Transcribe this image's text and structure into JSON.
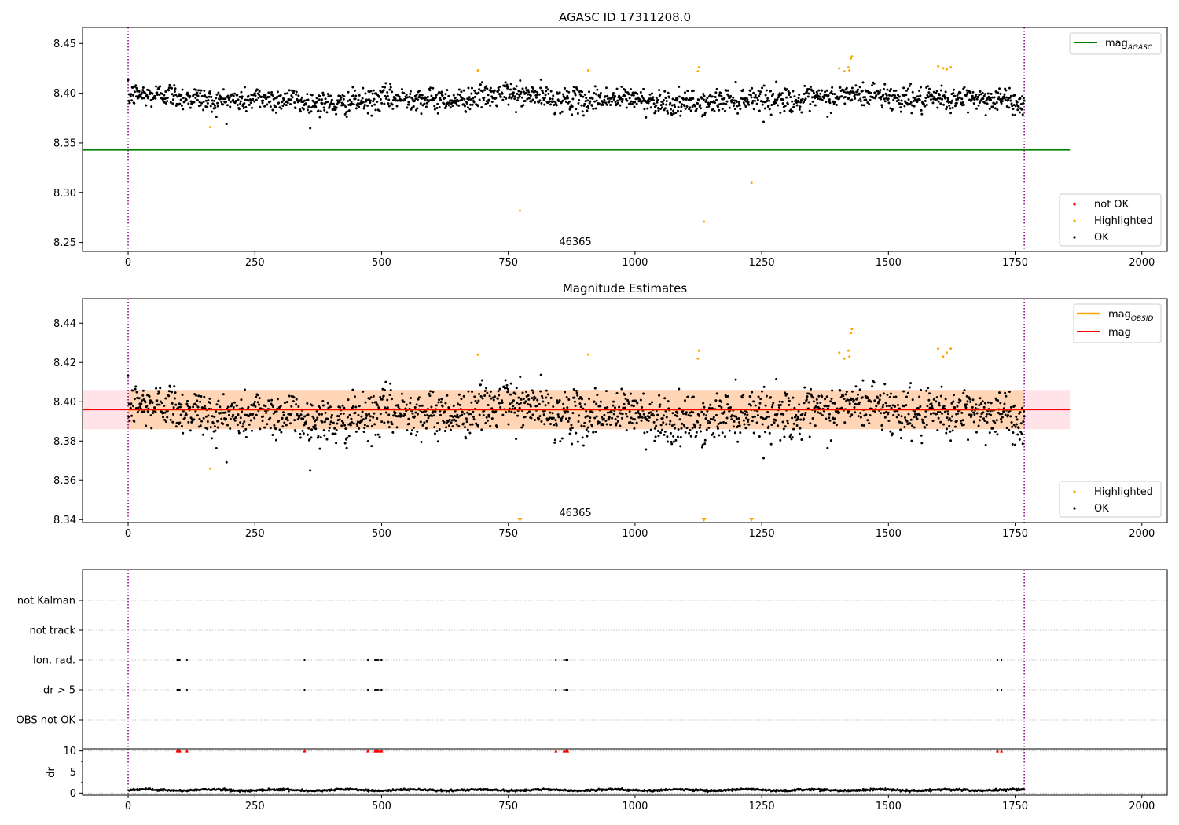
{
  "chart_data": [
    {
      "type": "scatter",
      "title": "AGASC ID 17311208.0",
      "xlim": [
        -90,
        2050
      ],
      "ylim": [
        8.241,
        8.466
      ],
      "xticks": [
        0,
        250,
        500,
        750,
        1000,
        1250,
        1500,
        1750,
        2000
      ],
      "yticks": [
        8.25,
        8.3,
        8.35,
        8.4,
        8.45
      ],
      "ytick_labels": [
        "8.25",
        "8.30",
        "8.35",
        "8.40",
        "8.45"
      ],
      "grid": false,
      "obsid_label": "46365",
      "obsid_label_x": 880,
      "obsid_boundaries": [
        0,
        1768
      ],
      "mag_agasc": 8.343,
      "mag_agasc_xrange": [
        -90,
        1858
      ],
      "legend_upper": {
        "placement": "upper-right",
        "entries": [
          {
            "label": "mag",
            "sub": "AGASC",
            "color": "#008000"
          }
        ]
      },
      "legend_lower": {
        "placement": "lower-right",
        "entries": [
          {
            "label": "not OK",
            "color": "#ff0000"
          },
          {
            "label": "Highlighted",
            "color": "#ffa500"
          },
          {
            "label": "OK",
            "color": "#000000"
          }
        ]
      },
      "series": [
        {
          "name": "OK",
          "color": "#000000",
          "n_points": 1768,
          "x_range": [
            0,
            1768
          ],
          "y_baseline": 8.394,
          "y_scatter": 0.008
        },
        {
          "name": "Highlighted",
          "color": "#ffa500",
          "points": [
            [
              162,
              8.366
            ],
            [
              690,
              8.423
            ],
            [
              773,
              8.282
            ],
            [
              908,
              8.423
            ],
            [
              1124,
              8.422
            ],
            [
              1126,
              8.426
            ],
            [
              1136,
              8.271
            ],
            [
              1230,
              8.31
            ],
            [
              1403,
              8.425
            ],
            [
              1413,
              8.422
            ],
            [
              1421,
              8.426
            ],
            [
              1423,
              8.423
            ],
            [
              1426,
              8.435
            ],
            [
              1428,
              8.437
            ],
            [
              1598,
              8.427
            ],
            [
              1608,
              8.425
            ],
            [
              1615,
              8.424
            ],
            [
              1623,
              8.426
            ]
          ]
        },
        {
          "name": "not OK",
          "color": "#ff0000",
          "points": []
        }
      ]
    },
    {
      "type": "scatter",
      "title": "Magnitude Estimates",
      "xlim": [
        -90,
        2050
      ],
      "ylim": [
        8.3385,
        8.4525
      ],
      "xticks": [
        0,
        250,
        500,
        750,
        1000,
        1250,
        1500,
        1750,
        2000
      ],
      "yticks": [
        8.34,
        8.36,
        8.38,
        8.4,
        8.42,
        8.44
      ],
      "ytick_labels": [
        "8.34",
        "8.36",
        "8.38",
        "8.40",
        "8.42",
        "8.44"
      ],
      "grid": false,
      "obsid_label": "46365",
      "obsid_label_x": 880,
      "obsid_boundaries": [
        0,
        1768
      ],
      "mag": 8.396,
      "mag_band": [
        8.386,
        8.406
      ],
      "mag_xrange": [
        -90,
        1858
      ],
      "mag_obsid": 8.396,
      "mag_obsid_band": [
        8.386,
        8.406
      ],
      "mag_obsid_xrange": [
        0,
        1768
      ],
      "legend_upper": {
        "placement": "upper-right",
        "entries": [
          {
            "label": "mag",
            "sub": "OBSID",
            "color": "#ffa500"
          },
          {
            "label": "mag",
            "sub": "",
            "color": "#ff0000"
          }
        ]
      },
      "legend_lower": {
        "placement": "lower-right",
        "entries": [
          {
            "label": "Highlighted",
            "color": "#ffa500"
          },
          {
            "label": "OK",
            "color": "#000000"
          }
        ]
      },
      "series": [
        {
          "name": "OK",
          "color": "#000000",
          "n_points": 1768,
          "x_range": [
            0,
            1768
          ],
          "y_baseline": 8.394,
          "y_scatter": 0.008
        },
        {
          "name": "Highlighted",
          "color": "#ffa500",
          "points": [
            [
              162,
              8.366
            ],
            [
              690,
              8.424
            ],
            [
              908,
              8.424
            ],
            [
              1124,
              8.422
            ],
            [
              1126,
              8.426
            ],
            [
              1403,
              8.425
            ],
            [
              1413,
              8.422
            ],
            [
              1421,
              8.426
            ],
            [
              1423,
              8.423
            ],
            [
              1426,
              8.435
            ],
            [
              1428,
              8.437
            ],
            [
              1598,
              8.427
            ],
            [
              1608,
              8.423
            ],
            [
              1615,
              8.425
            ],
            [
              1623,
              8.427
            ]
          ]
        },
        {
          "name": "Highlighted (below axis)",
          "color": "#ffa500",
          "marker": "triangle-down",
          "x": [
            773,
            1136,
            1230
          ]
        }
      ]
    },
    {
      "type": "scatter",
      "title": "",
      "xlim": [
        -90,
        2050
      ],
      "obsid_boundaries": [
        0,
        1768
      ],
      "flag_categories": [
        "not Kalman",
        "not track",
        "Ion. rad.",
        "dr > 5",
        "OBS not OK"
      ],
      "flag_points": {
        "not Kalman": [],
        "not track": [],
        "Ion. rad.": [
          97,
          100,
          102,
          116,
          348,
          473,
          487,
          490,
          493,
          497,
          500,
          844,
          860,
          864,
          867,
          1715,
          1723
        ],
        "dr > 5": [
          97,
          100,
          102,
          116,
          348,
          473,
          487,
          490,
          493,
          497,
          500,
          844,
          860,
          864,
          867,
          1715,
          1723
        ],
        "OBS not OK": []
      },
      "grid": true
    },
    {
      "type": "scatter",
      "title": "",
      "xlabel": "",
      "ylabel": "dr",
      "xlim": [
        -90,
        2050
      ],
      "ylim": [
        -0.5,
        10.5
      ],
      "xticks": [
        0,
        250,
        500,
        750,
        1000,
        1250,
        1500,
        1750,
        2000
      ],
      "yticks": [
        0,
        5,
        10
      ],
      "ytick_labels": [
        "0",
        "5",
        "10"
      ],
      "obsid_boundaries": [
        0,
        1768
      ],
      "series": [
        {
          "name": "dr",
          "color": "#000000",
          "n_points": 1768,
          "x_range": [
            0,
            1768
          ],
          "y_baseline": 0.7,
          "y_scatter": 0.25
        },
        {
          "name": "dr clipped",
          "color": "#ff0000",
          "marker": "triangle-up",
          "y": 10,
          "x": [
            97,
            100,
            102,
            116,
            348,
            473,
            487,
            490,
            493,
            497,
            500,
            844,
            860,
            864,
            867,
            1715,
            1723
          ]
        }
      ]
    }
  ]
}
